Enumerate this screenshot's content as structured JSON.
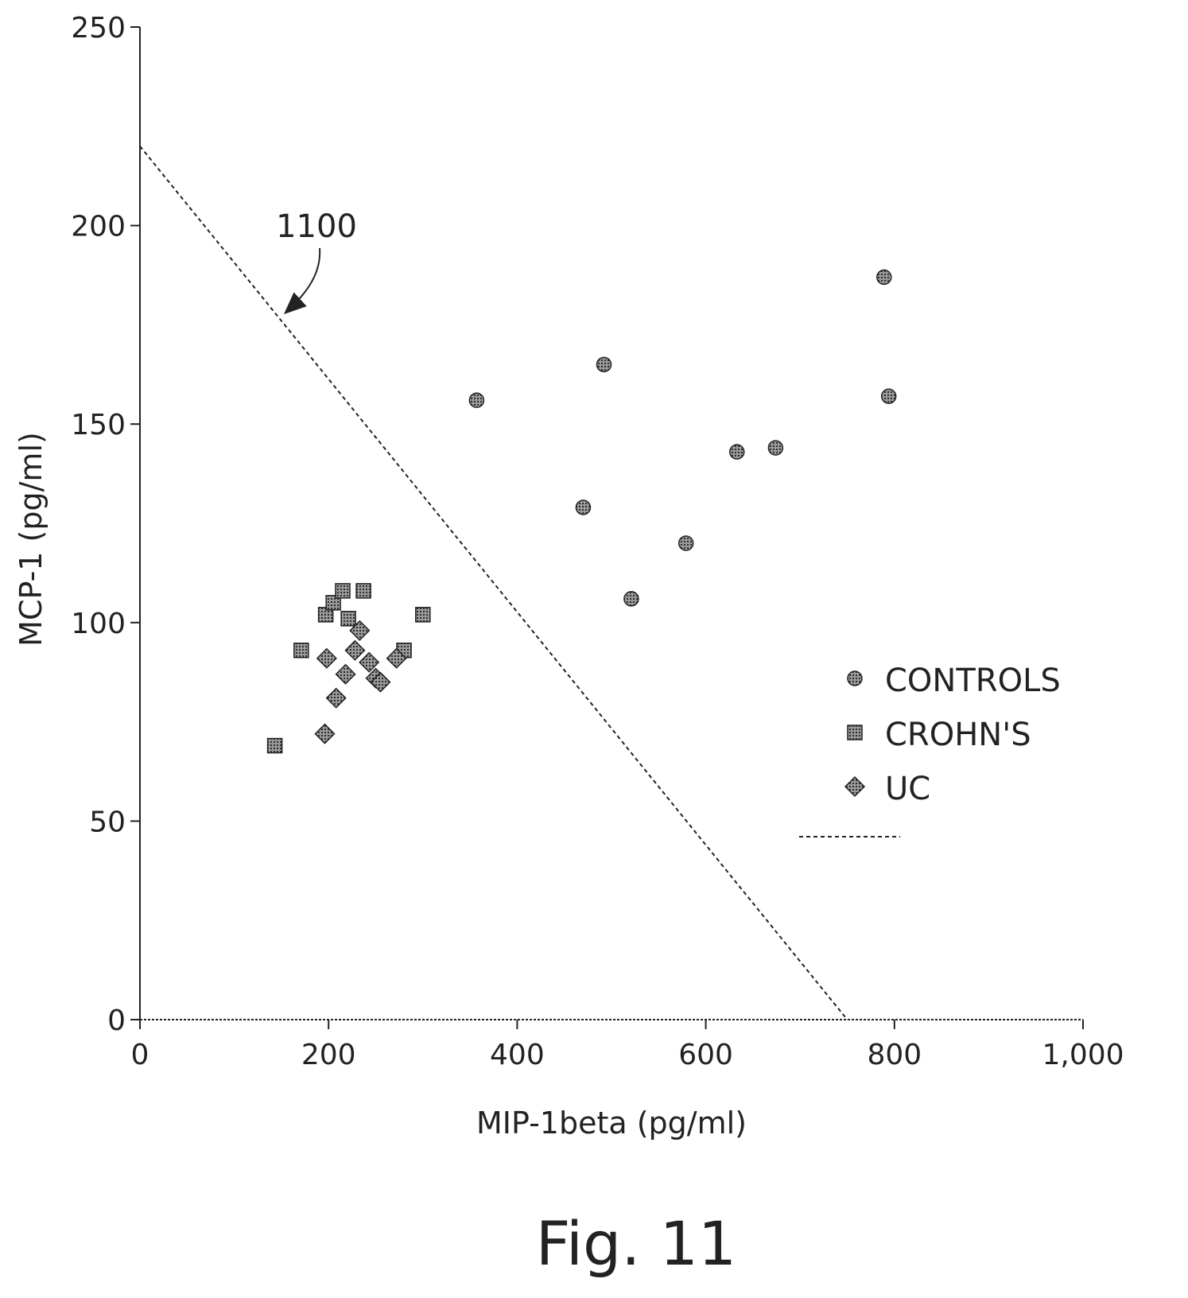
{
  "chart_data": {
    "type": "scatter",
    "xlabel": "MIP-1beta (pg/ml)",
    "ylabel": "MCP-1 (pg/ml)",
    "xlim": [
      0,
      1000
    ],
    "ylim": [
      0,
      250
    ],
    "x_ticks": [
      0,
      200,
      400,
      600,
      800,
      1000
    ],
    "x_tick_labels": [
      "0",
      "200",
      "400",
      "600",
      "800",
      "1,000"
    ],
    "y_ticks": [
      0,
      50,
      100,
      150,
      200,
      250
    ],
    "y_tick_labels": [
      "0",
      "50",
      "100",
      "150",
      "200",
      "250"
    ],
    "grid": false,
    "legend_position": "right",
    "series": [
      {
        "name": "CONTROLS",
        "marker": "circle",
        "points": [
          [
            357,
            156
          ],
          [
            470,
            129
          ],
          [
            492,
            165
          ],
          [
            521,
            106
          ],
          [
            579,
            120
          ],
          [
            633,
            143
          ],
          [
            674,
            144
          ],
          [
            789,
            187
          ],
          [
            794,
            157
          ]
        ]
      },
      {
        "name": "CROHN'S",
        "marker": "square",
        "points": [
          [
            143,
            69
          ],
          [
            171,
            93
          ],
          [
            197,
            102
          ],
          [
            205,
            105
          ],
          [
            215,
            108
          ],
          [
            221,
            101
          ],
          [
            237,
            108
          ],
          [
            300,
            102
          ],
          [
            280,
            93
          ]
        ]
      },
      {
        "name": "UC",
        "marker": "diamond",
        "points": [
          [
            196,
            72
          ],
          [
            198,
            91
          ],
          [
            208,
            81
          ],
          [
            218,
            87
          ],
          [
            228,
            93
          ],
          [
            233,
            98
          ],
          [
            243,
            90
          ],
          [
            250,
            86
          ],
          [
            255,
            85
          ],
          [
            272,
            91
          ]
        ]
      }
    ],
    "threshold_line": {
      "style": "dashed",
      "from": [
        0,
        220
      ],
      "to": [
        750,
        0
      ]
    },
    "annotation": {
      "text": "1100",
      "points_to": [
        150,
        177
      ]
    }
  },
  "figure": {
    "caption": "Fig. 11"
  },
  "colors": {
    "ink": "#222222",
    "marker_fill": "#555555",
    "background": "#ffffff"
  }
}
